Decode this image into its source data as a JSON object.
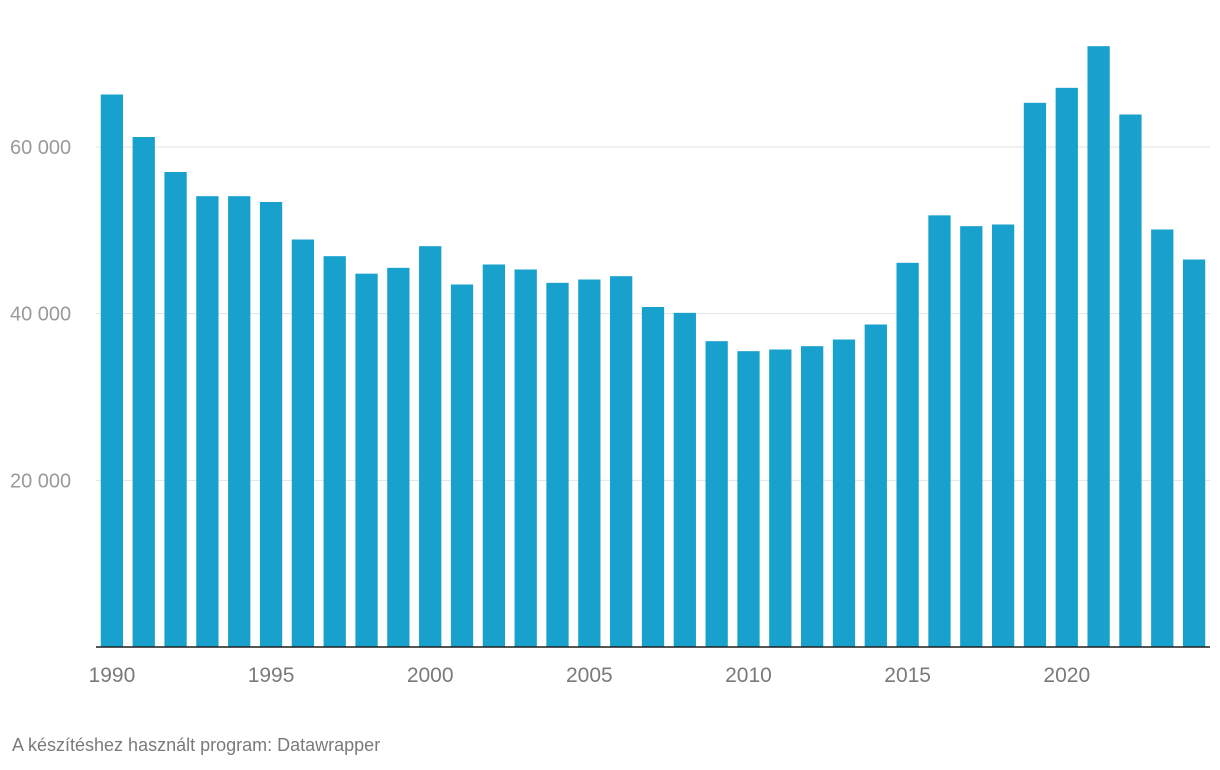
{
  "chart_data": {
    "type": "bar",
    "categories": [
      "1990",
      "1991",
      "1992",
      "1993",
      "1994",
      "1995",
      "1996",
      "1997",
      "1998",
      "1999",
      "2000",
      "2001",
      "2002",
      "2003",
      "2004",
      "2005",
      "2006",
      "2007",
      "2008",
      "2009",
      "2010",
      "2011",
      "2012",
      "2013",
      "2014",
      "2015",
      "2016",
      "2017",
      "2018",
      "2019",
      "2020",
      "2021",
      "2022",
      "2023",
      "2024"
    ],
    "values": [
      66300,
      61200,
      57000,
      54100,
      54100,
      53400,
      48900,
      46900,
      44800,
      45500,
      48100,
      43500,
      45900,
      45300,
      43700,
      44100,
      44500,
      40800,
      40100,
      36700,
      35500,
      35700,
      36100,
      36900,
      38700,
      46100,
      51800,
      50500,
      50700,
      65300,
      67100,
      72100,
      63900,
      50100,
      46500
    ],
    "color": "#19a1cd",
    "ylim": [
      0,
      75000
    ],
    "y_ticks": [
      {
        "value": 20000,
        "label": "20 000"
      },
      {
        "value": 40000,
        "label": "40 000"
      },
      {
        "value": 60000,
        "label": "60 000"
      }
    ],
    "x_ticks": [
      "1990",
      "1995",
      "2000",
      "2005",
      "2010",
      "2015",
      "2020"
    ],
    "grid": true,
    "title": "",
    "xlabel": "",
    "ylabel": ""
  },
  "footer": {
    "credit": "A készítéshez használt program: Datawrapper"
  }
}
